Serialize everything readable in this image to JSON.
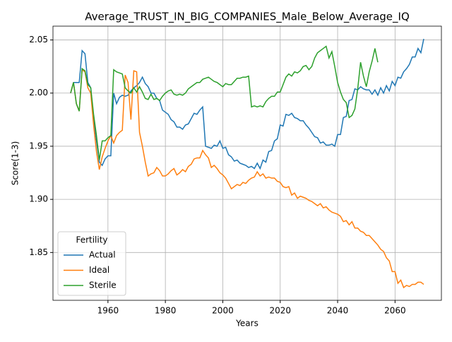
{
  "chart_data": {
    "type": "line",
    "title": "Average_TRUST_IN_BIG_COMPANIES_Male_Below_Average_IQ",
    "x_label": "Years",
    "y_label": "Score(1-3)",
    "x": [
      1947,
      1948,
      1949,
      1950,
      1951,
      1952,
      1953,
      1954,
      1955,
      1956,
      1957,
      1958,
      1959,
      1960,
      1961,
      1962,
      1963,
      1964,
      1965,
      1966,
      1967,
      1968,
      1969,
      1970,
      1971,
      1972,
      1973,
      1974,
      1975,
      1976,
      1977,
      1978,
      1979,
      1980,
      1981,
      1982,
      1983,
      1984,
      1985,
      1986,
      1987,
      1988,
      1989,
      1990,
      1991,
      1992,
      1993,
      1994,
      1995,
      1996,
      1997,
      1998,
      1999,
      2000,
      2001,
      2002,
      2003,
      2004,
      2005,
      2006,
      2007,
      2008,
      2009,
      2010,
      2011,
      2012,
      2013,
      2014,
      2015,
      2016,
      2017,
      2018,
      2019,
      2020,
      2021,
      2022,
      2023,
      2024,
      2025,
      2026,
      2027,
      2028,
      2029,
      2030,
      2031,
      2032,
      2033,
      2034,
      2035,
      2036,
      2037,
      2038,
      2039,
      2040,
      2041,
      2042,
      2043,
      2044,
      2045,
      2046,
      2047,
      2048,
      2049,
      2050,
      2051,
      2052,
      2053,
      2054,
      2055,
      2056,
      2057,
      2058,
      2059,
      2060,
      2061,
      2062,
      2063,
      2064,
      2065,
      2066,
      2067,
      2068,
      2069,
      2070
    ],
    "series": [
      {
        "name": "Actual",
        "color": "#1f77b4",
        "values": [
          2.0,
          2.01,
          2.01,
          2.01,
          2.04,
          2.037,
          2.01,
          2.005,
          1.975,
          1.955,
          1.935,
          1.932,
          1.938,
          1.941,
          1.941,
          2.0,
          1.99,
          1.996,
          1.998,
          1.997,
          1.998,
          2.002,
          2.005,
          2.007,
          2.01,
          2.015,
          2.009,
          2.006,
          2.0,
          2.0,
          1.995,
          1.993,
          1.984,
          1.982,
          1.98,
          1.975,
          1.973,
          1.968,
          1.968,
          1.966,
          1.97,
          1.971,
          1.976,
          1.981,
          1.98,
          1.984,
          1.987,
          1.95,
          1.949,
          1.948,
          1.951,
          1.95,
          1.955,
          1.948,
          1.949,
          1.942,
          1.94,
          1.936,
          1.937,
          1.934,
          1.933,
          1.932,
          1.93,
          1.931,
          1.929,
          1.934,
          1.929,
          1.937,
          1.935,
          1.945,
          1.946,
          1.955,
          1.957,
          1.97,
          1.969,
          1.98,
          1.979,
          1.981,
          1.977,
          1.976,
          1.974,
          1.974,
          1.97,
          1.967,
          1.963,
          1.959,
          1.958,
          1.953,
          1.954,
          1.951,
          1.951,
          1.952,
          1.95,
          1.961,
          1.961,
          1.977,
          1.978,
          1.993,
          1.994,
          2.004,
          2.003,
          2.006,
          2.004,
          2.003,
          2.003,
          1.999,
          2.003,
          1.998,
          2.005,
          2.0,
          2.007,
          2.002,
          2.011,
          2.007,
          2.015,
          2.014,
          2.02,
          2.023,
          2.027,
          2.034,
          2.034,
          2.042,
          2.038,
          2.051
        ]
      },
      {
        "name": "Ideal",
        "color": "#ff7f0e",
        "values": [
          2.0,
          2.01,
          1.99,
          1.983,
          2.022,
          2.02,
          2.005,
          2.0,
          1.97,
          1.945,
          1.928,
          1.94,
          1.948,
          1.955,
          1.96,
          1.953,
          1.96,
          1.963,
          1.965,
          2.017,
          2.01,
          1.975,
          2.021,
          2.02,
          1.963,
          1.95,
          1.935,
          1.922,
          1.924,
          1.925,
          1.93,
          1.927,
          1.922,
          1.922,
          1.924,
          1.927,
          1.929,
          1.923,
          1.925,
          1.928,
          1.926,
          1.931,
          1.933,
          1.938,
          1.939,
          1.939,
          1.946,
          1.942,
          1.939,
          1.93,
          1.932,
          1.929,
          1.925,
          1.923,
          1.92,
          1.915,
          1.91,
          1.912,
          1.914,
          1.913,
          1.916,
          1.915,
          1.918,
          1.92,
          1.921,
          1.926,
          1.922,
          1.924,
          1.92,
          1.921,
          1.92,
          1.92,
          1.917,
          1.916,
          1.912,
          1.911,
          1.912,
          1.904,
          1.906,
          1.901,
          1.903,
          1.902,
          1.901,
          1.899,
          1.898,
          1.896,
          1.894,
          1.896,
          1.892,
          1.893,
          1.89,
          1.888,
          1.887,
          1.886,
          1.884,
          1.879,
          1.88,
          1.876,
          1.879,
          1.873,
          1.873,
          1.87,
          1.869,
          1.866,
          1.866,
          1.863,
          1.86,
          1.857,
          1.853,
          1.851,
          1.845,
          1.842,
          1.832,
          1.832,
          1.821,
          1.824,
          1.817,
          1.819,
          1.818,
          1.82,
          1.82,
          1.822,
          1.822,
          1.82
        ]
      },
      {
        "name": "Sterile",
        "color": "#2ca02c",
        "values": [
          2.0,
          2.01,
          1.99,
          1.983,
          2.023,
          2.021,
          2.008,
          2.005,
          1.98,
          1.96,
          1.937,
          1.955,
          1.955,
          1.958,
          1.96,
          2.022,
          2.02,
          2.019,
          2.018,
          2.005,
          2.002,
          2.0,
          2.005,
          2.001,
          2.006,
          2.001,
          1.995,
          1.994,
          1.999,
          1.994,
          1.995,
          1.993,
          1.997,
          2.0,
          2.002,
          2.003,
          1.999,
          1.998,
          1.999,
          1.998,
          2.0,
          2.004,
          2.006,
          2.008,
          2.01,
          2.01,
          2.013,
          2.014,
          2.015,
          2.013,
          2.011,
          2.01,
          2.008,
          2.006,
          2.009,
          2.008,
          2.008,
          2.011,
          2.014,
          2.014,
          2.015,
          2.015,
          2.016,
          1.987,
          1.988,
          1.987,
          1.988,
          1.987,
          1.992,
          1.995,
          1.997,
          1.997,
          2.001,
          2.001,
          2.008,
          2.015,
          2.018,
          2.016,
          2.02,
          2.019,
          2.021,
          2.025,
          2.026,
          2.022,
          2.025,
          2.033,
          2.038,
          2.04,
          2.042,
          2.044,
          2.033,
          2.039,
          2.025,
          2.01,
          2.001,
          1.994,
          1.991,
          1.977,
          1.979,
          1.985,
          2.004,
          2.029,
          2.016,
          2.006,
          2.02,
          2.03,
          2.042,
          2.029,
          null,
          null,
          null,
          null,
          null,
          null,
          null,
          null,
          null,
          null,
          null,
          null,
          null,
          null,
          null,
          null
        ]
      }
    ],
    "xlim": [
      1940.85,
      2076.15
    ],
    "ylim": [
      1.805,
      2.063
    ],
    "xticks": [
      1960,
      1980,
      2000,
      2020,
      2040,
      2060
    ],
    "yticks": [
      1.85,
      {
        "value": 1.9,
        "label": "1.90"
      },
      1.95,
      {
        "value": 2.0,
        "label": "2.00"
      },
      2.05
    ],
    "grid": true,
    "legend": {
      "title": "Fertility",
      "position": "lower left"
    }
  }
}
